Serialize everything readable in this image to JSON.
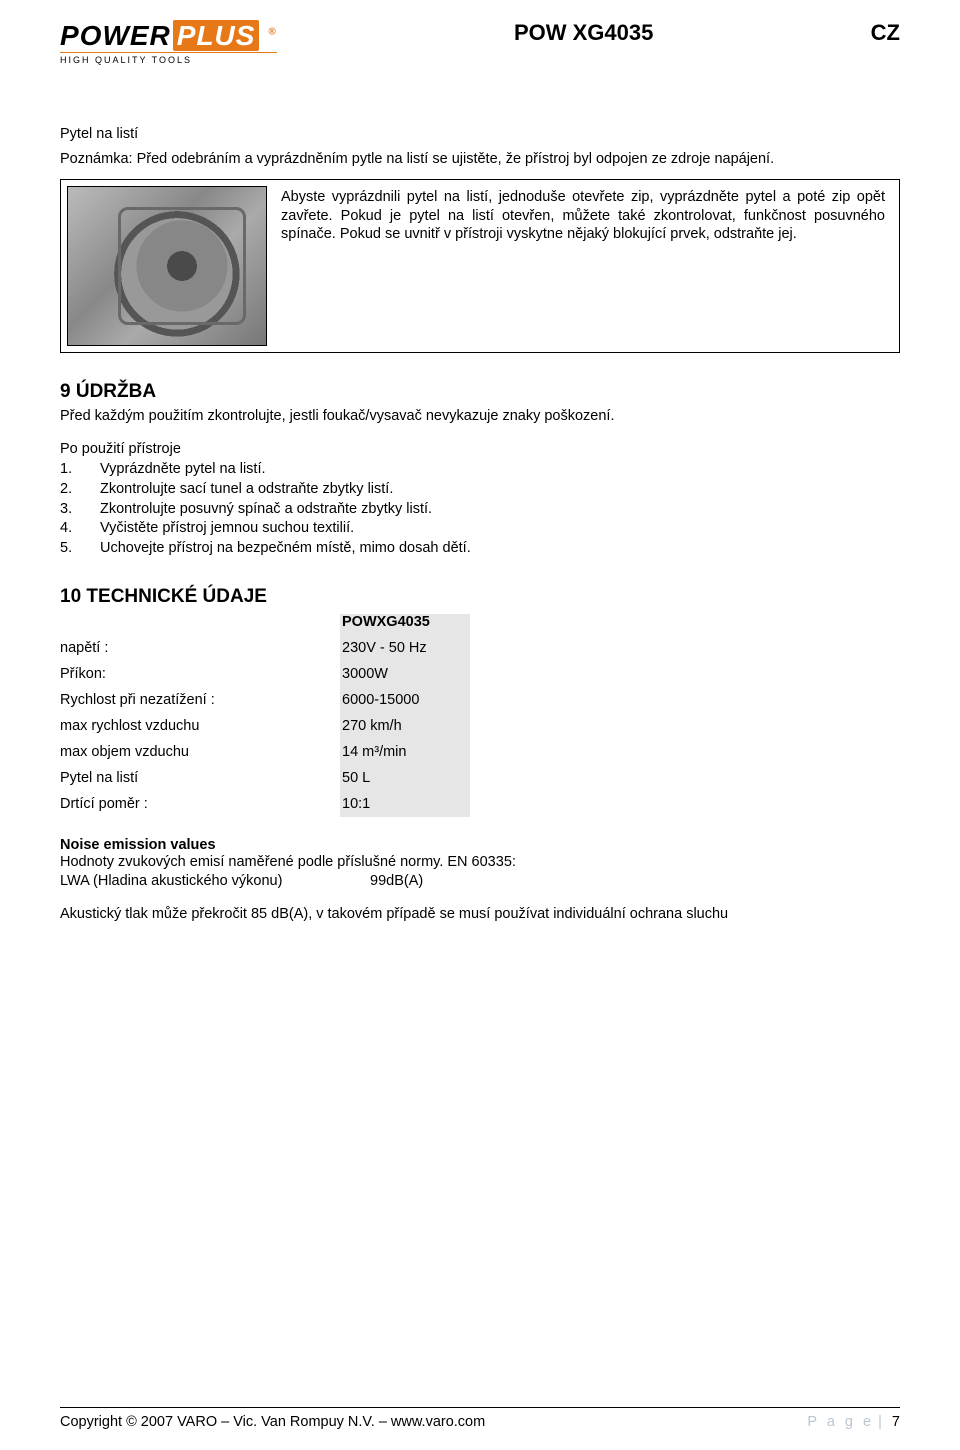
{
  "logo": {
    "brand_left": "POWER",
    "brand_right": "PLUS",
    "reg": "®",
    "tagline": "HIGH QUALITY TOOLS",
    "colors": {
      "accent": "#e67817"
    }
  },
  "header": {
    "title": "POW XG4035",
    "lang": "CZ"
  },
  "bag_section": {
    "title": "Pytel na listí",
    "note": "Poznámka: Před odebráním a vyprázdněním pytle na listí se ujistěte, že přístroj byl odpojen ze zdroje napájení.",
    "box_text": "Abyste vyprázdnili pytel na listí, jednoduše otevřete zip, vyprázdněte pytel a poté zip opět zavřete. Pokud je pytel na listí otevřen, můžete také zkontrolovat, funkčnost posuvného spínače. Pokud se uvnitř v přístroji vyskytne nějaký blokující prvek, odstraňte jej."
  },
  "maintenance": {
    "heading": "9  ÚDRŽBA",
    "intro": "Před každým použitím zkontrolujte, jestli foukač/vysavač nevykazuje znaky poškození.",
    "after_label": "Po použití přístroje",
    "steps": [
      "Vyprázdněte pytel na listí.",
      "Zkontrolujte sací tunel a odstraňte zbytky listí.",
      "Zkontrolujte posuvný spínač a odstraňte zbytky listí.",
      "Vyčistěte přístroj jemnou suchou textilií.",
      "Uchovejte přístroj na bezpečném místě, mimo dosah dětí."
    ]
  },
  "tech": {
    "heading": "10 TECHNICKÉ ÚDAJE",
    "model": "POWXG4035",
    "rows": [
      {
        "label": "napětí :",
        "value": "230V - 50 Hz"
      },
      {
        "label": "Příkon:",
        "value": "3000W"
      },
      {
        "label": "Rychlost při nezatížení :",
        "value": "6000-15000"
      },
      {
        "label": "max rychlost vzduchu",
        "value": "270 km/h"
      },
      {
        "label": "max objem vzduchu",
        "value": "14 m³/min"
      },
      {
        "label": "Pytel na listí",
        "value": "50 L"
      },
      {
        "label": "Drtící poměr :",
        "value": "10:1"
      }
    ],
    "cell_bg": "#e6e6e6"
  },
  "noise": {
    "title": "Noise emission values",
    "line1": "Hodnoty zvukových emisí naměřené podle příslušné normy. EN 60335:",
    "lwa_label": "LWA (Hladina akustického výkonu)",
    "lwa_value": "99dB(A)",
    "warn": "Akustický tlak může překročit 85 dB(A), v takovém případě se musí používat individuální ochrana sluchu"
  },
  "footer": {
    "copyright": "Copyright © 2007 VARO – Vic. Van Rompuy N.V. – www.varo.com",
    "page_label": "P a g e",
    "page_sep": "| ",
    "page_num": "7"
  }
}
